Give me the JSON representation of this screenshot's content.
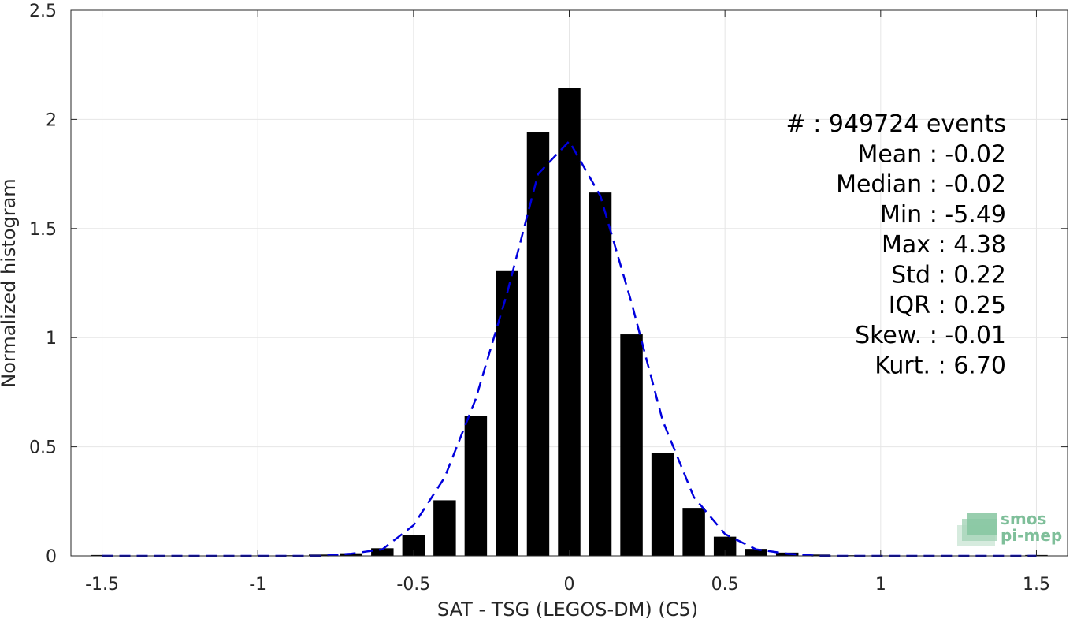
{
  "chart_data": {
    "type": "bar",
    "xlabel": "SAT - TSG (LEGOS-DM) (C5)",
    "ylabel": "Normalized histogram",
    "xlim": [
      -1.6,
      1.6
    ],
    "ylim": [
      0,
      2.5
    ],
    "xticks": [
      -1.5,
      -1,
      -0.5,
      0,
      0.5,
      1,
      1.5
    ],
    "xtick_labels": [
      "-1.5",
      "-1",
      "-0.5",
      "0",
      "0.5",
      "1",
      "1.5"
    ],
    "yticks": [
      0,
      0.5,
      1,
      1.5,
      2,
      2.5
    ],
    "ytick_labels": [
      "0",
      "0.5",
      "1",
      "1.5",
      "2",
      "2.5"
    ],
    "grid": true,
    "bin_width": 0.1,
    "bar_fill_fraction": 0.72,
    "bar_color": "#000000",
    "x": [
      -1.5,
      -1.4,
      -1.3,
      -1.2,
      -1.1,
      -1.0,
      -0.9,
      -0.8,
      -0.7,
      -0.6,
      -0.5,
      -0.4,
      -0.3,
      -0.2,
      -0.1,
      0.0,
      0.1,
      0.2,
      0.3,
      0.4,
      0.5,
      0.6,
      0.7,
      0.8,
      0.9,
      1.0,
      1.1,
      1.2,
      1.3,
      1.4,
      1.5
    ],
    "values": [
      0.004,
      0.001,
      0.001,
      0.001,
      0.001,
      0.002,
      0.003,
      0.006,
      0.012,
      0.035,
      0.095,
      0.255,
      0.64,
      1.305,
      1.94,
      2.145,
      1.665,
      1.015,
      0.47,
      0.22,
      0.088,
      0.032,
      0.015,
      0.006,
      0.003,
      0.002,
      0.001,
      0.001,
      0.001,
      0.001,
      0.004
    ],
    "fit_curve": {
      "color": "#0000dd",
      "style": "dashed",
      "x": [
        -1.5,
        -1.4,
        -1.3,
        -1.2,
        -1.1,
        -1.0,
        -0.9,
        -0.8,
        -0.7,
        -0.6,
        -0.5,
        -0.4,
        -0.3,
        -0.2,
        -0.1,
        0.0,
        0.1,
        0.2,
        0.3,
        0.4,
        0.5,
        0.6,
        0.7,
        0.8,
        0.9,
        1.0,
        1.1,
        1.2,
        1.3,
        1.4,
        1.5
      ],
      "y": [
        0.0,
        0.0,
        0.0,
        0.0,
        0.0,
        0.0,
        0.0,
        0.0,
        0.01,
        0.03,
        0.14,
        0.36,
        0.72,
        1.2,
        1.75,
        1.9,
        1.65,
        1.16,
        0.62,
        0.27,
        0.1,
        0.03,
        0.01,
        0.0,
        0.0,
        0.0,
        0.0,
        0.0,
        0.0,
        0.0,
        0.0
      ]
    },
    "annotations": [
      "#  : 949724 events",
      "Mean : -0.02",
      "Median : -0.02",
      "Min : -5.49",
      "Max : 4.38",
      "Std : 0.22",
      "IQR : 0.25",
      "Skew. : -0.01",
      "Kurt. : 6.70"
    ]
  },
  "logo": {
    "line1": "smos",
    "line2": "pi-mep"
  }
}
